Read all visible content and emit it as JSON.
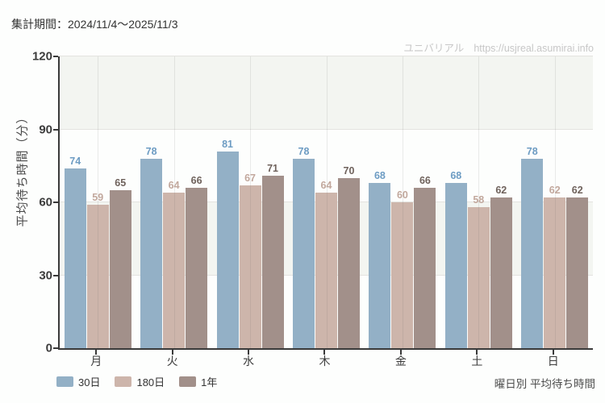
{
  "header": {
    "title": "集計期間：2024/11/4～2025/11/3",
    "watermark_name": "ユニバリアル",
    "watermark_url": "https://usjreal.asumirai.info"
  },
  "chart_data": {
    "type": "bar",
    "title": "曜日別 平均待ち時間",
    "ylabel": "平均待ち時間（分）",
    "xlabel": "",
    "ylim": [
      0,
      120
    ],
    "yticks": [
      0,
      30,
      60,
      90,
      120
    ],
    "categories": [
      "月",
      "火",
      "水",
      "木",
      "金",
      "土",
      "日"
    ],
    "series": [
      {
        "name": "30日",
        "color": "#93b0c6",
        "label_color": "#6d9cc3",
        "values": [
          74,
          78,
          81,
          78,
          68,
          68,
          78
        ]
      },
      {
        "name": "180日",
        "color": "#cdb5ab",
        "label_color": "#c2a89d",
        "values": [
          59,
          64,
          67,
          64,
          60,
          58,
          62
        ]
      },
      {
        "name": "1年",
        "color": "#a2908a",
        "label_color": "#6f625c",
        "values": [
          65,
          66,
          71,
          70,
          66,
          62,
          62
        ]
      }
    ],
    "legend_position": "bottom-left",
    "grid": true,
    "band_color": "#f3f5f1"
  }
}
